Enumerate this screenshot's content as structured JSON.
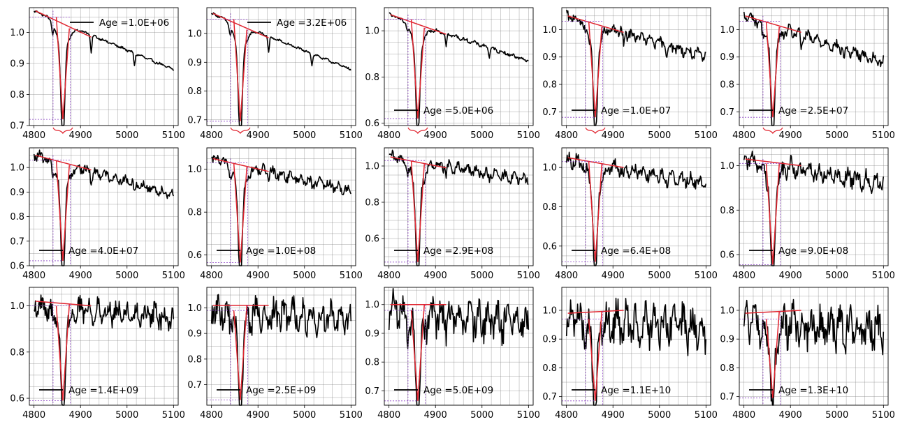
{
  "figure": {
    "xticks": [
      4800,
      4900,
      5000,
      5100
    ],
    "xlim": [
      4790,
      5110
    ],
    "line_color": "#000000",
    "fit_color": "#e0242f",
    "guide_color": "#8e44c7",
    "grid_color": "#7f7f7f"
  },
  "chart_data": [
    {
      "type": "line",
      "legend": "Age =1.0E+06",
      "legend_pos": "top",
      "ylim": [
        0.7,
        1.08
      ],
      "yticks": [
        0.7,
        0.8,
        0.9,
        1.0
      ],
      "continuum": [
        1.07,
        0.88
      ],
      "depth": 0.72,
      "noise": 0.004,
      "cont_line": [
        1.07,
        0.985
      ],
      "bracket": true
    },
    {
      "type": "line",
      "legend": "Age =3.2E+06",
      "legend_pos": "top",
      "ylim": [
        0.68,
        1.09
      ],
      "yticks": [
        0.7,
        0.8,
        0.9,
        1.0
      ],
      "continuum": [
        1.07,
        0.875
      ],
      "depth": 0.695,
      "noise": 0.004,
      "cont_line": [
        1.07,
        0.985
      ],
      "bracket": true
    },
    {
      "type": "line",
      "legend": "Age =5.0E+06",
      "legend_pos": "bottom",
      "ylim": [
        0.59,
        1.1
      ],
      "yticks": [
        0.6,
        0.8,
        1.0
      ],
      "continuum": [
        1.07,
        0.87
      ],
      "depth": 0.62,
      "noise": 0.008,
      "cont_line": [
        1.07,
        0.985
      ],
      "bracket": true
    },
    {
      "type": "line",
      "legend": "Age =1.0E+07",
      "legend_pos": "bottom",
      "ylim": [
        0.65,
        1.08
      ],
      "yticks": [
        0.7,
        0.8,
        0.9,
        1.0
      ],
      "continuum": [
        1.05,
        0.9
      ],
      "depth": 0.68,
      "noise": 0.02,
      "cont_line": [
        1.05,
        0.99
      ],
      "bracket": true
    },
    {
      "type": "line",
      "legend": "Age =2.5E+07",
      "legend_pos": "bottom",
      "ylim": [
        0.65,
        1.08
      ],
      "yticks": [
        0.7,
        0.8,
        0.9,
        1.0
      ],
      "continuum": [
        1.05,
        0.88
      ],
      "depth": 0.68,
      "noise": 0.02,
      "cont_line": [
        1.05,
        0.99
      ],
      "bracket": true
    },
    {
      "type": "line",
      "legend": "Age =4.0E+07",
      "legend_pos": "bottom",
      "ylim": [
        0.6,
        1.08
      ],
      "yticks": [
        0.6,
        0.7,
        0.8,
        0.9,
        1.0
      ],
      "continuum": [
        1.05,
        0.89
      ],
      "depth": 0.62,
      "noise": 0.02,
      "cont_line": [
        1.05,
        0.99
      ],
      "bracket": false
    },
    {
      "type": "line",
      "legend": "Age =1.0E+08",
      "legend_pos": "bottom",
      "ylim": [
        0.55,
        1.1
      ],
      "yticks": [
        0.6,
        0.8,
        1.0
      ],
      "continuum": [
        1.05,
        0.9
      ],
      "depth": 0.565,
      "noise": 0.025,
      "cont_line": [
        1.05,
        0.99
      ],
      "bracket": false
    },
    {
      "type": "line",
      "legend": "Age =2.9E+08",
      "legend_pos": "bottom",
      "ylim": [
        0.45,
        1.1
      ],
      "yticks": [
        0.6,
        0.8,
        1.0
      ],
      "continuum": [
        1.05,
        0.92
      ],
      "depth": 0.47,
      "noise": 0.03,
      "cont_line": [
        1.05,
        0.99
      ],
      "bracket": false
    },
    {
      "type": "line",
      "legend": "Age =6.4E+08",
      "legend_pos": "bottom",
      "ylim": [
        0.5,
        1.1
      ],
      "yticks": [
        0.6,
        0.8,
        1.0
      ],
      "continuum": [
        1.04,
        0.92
      ],
      "depth": 0.52,
      "noise": 0.035,
      "cont_line": [
        1.05,
        1.0
      ],
      "bracket": false
    },
    {
      "type": "line",
      "legend": "Age =9.0E+08",
      "legend_pos": "bottom",
      "ylim": [
        0.55,
        1.08
      ],
      "yticks": [
        0.6,
        0.8,
        1.0
      ],
      "continuum": [
        1.03,
        0.92
      ],
      "depth": 0.555,
      "noise": 0.04,
      "cont_line": [
        1.03,
        1.0
      ],
      "bracket": false
    },
    {
      "type": "line",
      "legend": "Age =1.4E+09",
      "legend_pos": "bottom",
      "ylim": [
        0.57,
        1.08
      ],
      "yticks": [
        0.6,
        0.8,
        1.0
      ],
      "continuum": [
        1.0,
        0.95
      ],
      "depth": 0.59,
      "noise": 0.05,
      "cont_line": [
        1.02,
        1.0
      ],
      "bracket": false
    },
    {
      "type": "line",
      "legend": "Age =2.5E+09",
      "legend_pos": "bottom",
      "ylim": [
        0.62,
        1.08
      ],
      "yticks": [
        0.7,
        0.8,
        0.9,
        1.0
      ],
      "continuum": [
        0.99,
        0.95
      ],
      "depth": 0.64,
      "noise": 0.06,
      "cont_line": [
        1.01,
        1.01
      ],
      "bracket": false
    },
    {
      "type": "line",
      "legend": "Age =5.0E+09",
      "legend_pos": "bottom",
      "ylim": [
        0.65,
        1.06
      ],
      "yticks": [
        0.7,
        0.8,
        0.9,
        1.0
      ],
      "continuum": [
        0.98,
        0.93
      ],
      "depth": 0.665,
      "noise": 0.06,
      "cont_line": [
        1.0,
        1.0
      ],
      "bracket": false
    },
    {
      "type": "line",
      "legend": "Age =1.1E+10",
      "legend_pos": "bottom",
      "ylim": [
        0.67,
        1.08
      ],
      "yticks": [
        0.7,
        0.8,
        0.9,
        1.0
      ],
      "continuum": [
        0.97,
        0.93
      ],
      "depth": 0.685,
      "noise": 0.07,
      "cont_line": [
        0.99,
        1.0
      ],
      "bracket": false
    },
    {
      "type": "line",
      "legend": "Age =1.3E+10",
      "legend_pos": "bottom",
      "ylim": [
        0.67,
        1.08
      ],
      "yticks": [
        0.7,
        0.8,
        0.9,
        1.0
      ],
      "continuum": [
        0.96,
        0.93
      ],
      "depth": 0.695,
      "noise": 0.07,
      "cont_line": [
        0.99,
        1.0
      ],
      "bracket": false
    }
  ]
}
